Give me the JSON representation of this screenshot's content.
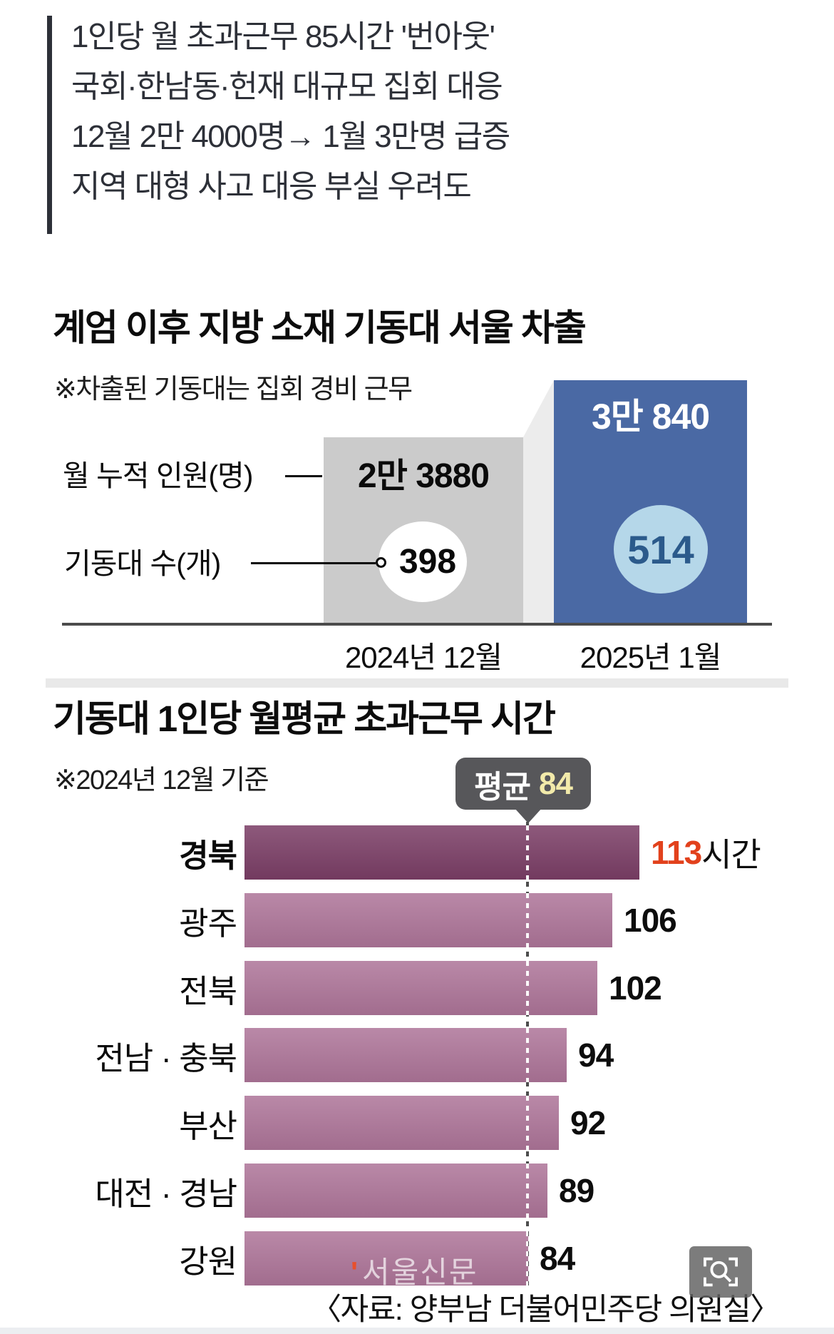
{
  "article": {
    "lines": [
      "1인당 월 초과근무 85시간 '번아웃'",
      "국회·한남동·헌재 대규모 집회 대응",
      "12월 2만 4000명→ 1월 3만명 급증",
      "지역 대형 사고 대응 부실 우려도"
    ]
  },
  "chart_data": [
    {
      "type": "bar",
      "title": "계엄 이후 지방 소재 기동대 서울 차출",
      "note": "※차출된 기동대는 집회 경비 근무",
      "categories": [
        "2024년 12월",
        "2025년 1월"
      ],
      "series": [
        {
          "name": "월 누적 인원(명)",
          "values": [
            23880,
            30840
          ],
          "display": [
            "2만 3880",
            "3만 840"
          ]
        },
        {
          "name": "기동대 수(개)",
          "values": [
            398,
            514
          ]
        }
      ],
      "legend_position": "left",
      "grid": false
    },
    {
      "type": "bar",
      "orientation": "horizontal",
      "title": "기동대 1인당 월평균 초과근무 시간",
      "note": "※2024년 12월 기준",
      "categories": [
        "경북",
        "광주",
        "전북",
        "전남 · 충북",
        "부산",
        "대전 · 경남",
        "강원"
      ],
      "values": [
        113,
        106,
        102,
        94,
        92,
        89,
        84
      ],
      "average": 84,
      "average_label": "평균",
      "unit": "시간",
      "highlight_index": 0,
      "xlim": [
        0,
        120
      ],
      "grid": false,
      "source": "〈자료: 양부남 더불어민주당 의원실〉",
      "watermark_mark": "'",
      "watermark": "서울신문"
    }
  ],
  "colors": {
    "accent-blue": "#4a69a4",
    "light-blue": "#b5d7e9",
    "blue-text": "#2b5a8b",
    "bar-gray": "#cbcbcb",
    "connector-gray": "#ececec",
    "dark-purple": "#7b3e66",
    "light-purple": "#ae7599",
    "highlight-red": "#e2411c",
    "tooltip-bg": "#57575a",
    "tooltip-value": "#f2eaaa",
    "text-dark": "#2d3038",
    "divider-gray": "#e9e9e9",
    "baseline-gray": "#4b4b4b",
    "watermark-orange": "#e8502d"
  }
}
